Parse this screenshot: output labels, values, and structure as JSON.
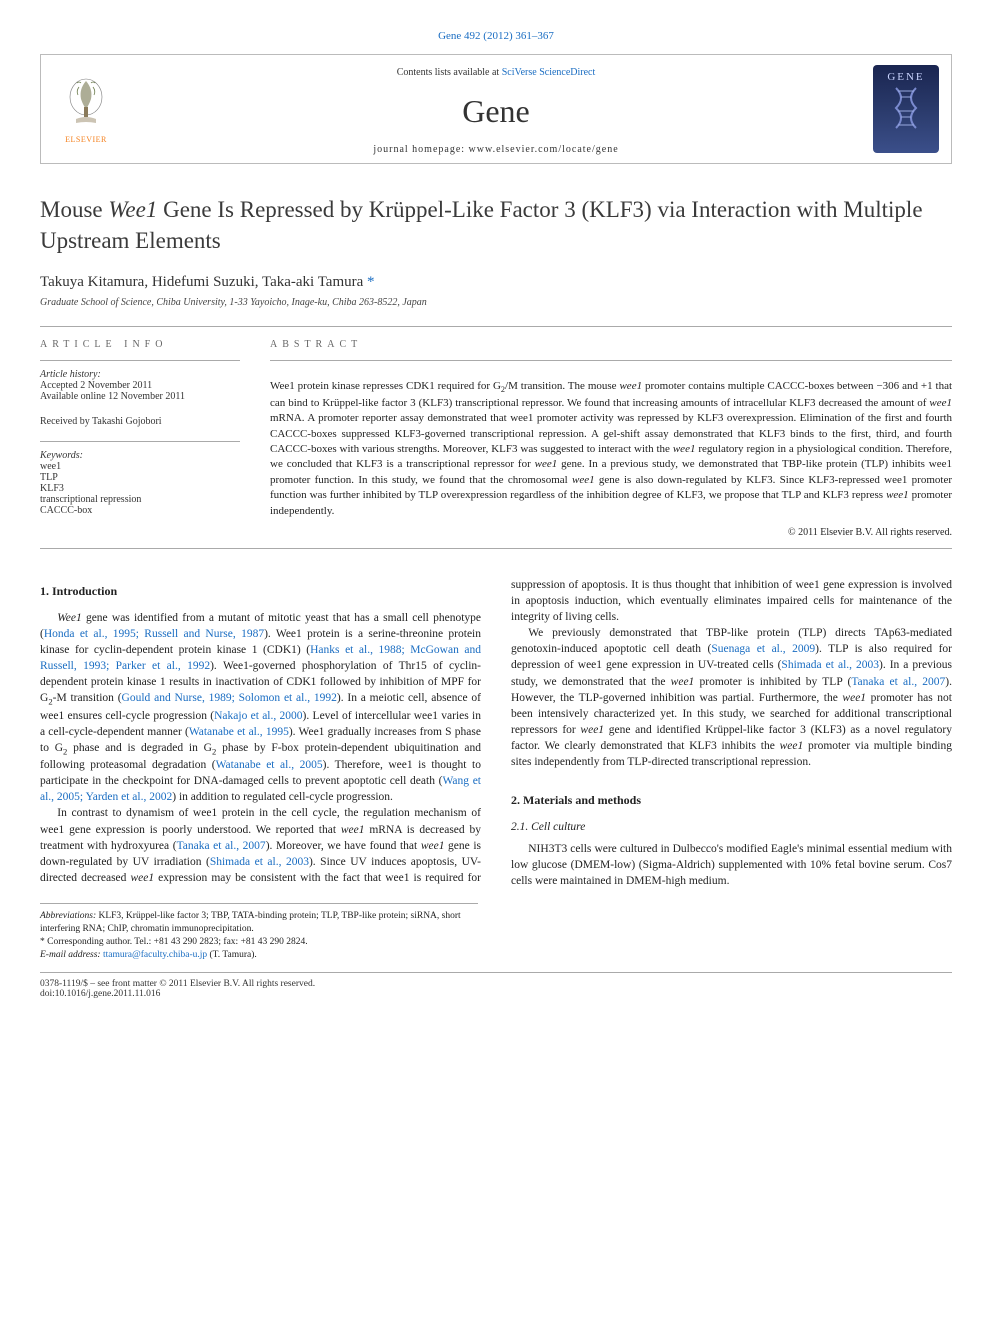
{
  "journal": {
    "topLinkText": "Gene 492 (2012) 361–367",
    "contentsListText": "Contents lists available at ",
    "contentsLinkText": "SciVerse ScienceDirect",
    "name": "Gene",
    "homepageText": "journal homepage: www.elsevier.com/locate/gene",
    "publisherLogoText": "ELSEVIER",
    "coverTitle": "GENE"
  },
  "article": {
    "titleHtml": "Mouse <i>Wee1</i> Gene Is Repressed by Krüppel-Like Factor 3 (KLF3) via Interaction with Multiple Upstream Elements",
    "authorsHtml": "Takuya Kitamura, Hidefumi Suzuki, Taka-aki Tamura <span class='corr-star'>*</span>",
    "affiliation": "Graduate School of Science, Chiba University, 1-33 Yayoicho, Inage-ku, Chiba 263-8522, Japan"
  },
  "meta": {
    "infoHeading": "article info",
    "abstractHeading": "abstract",
    "historyLabel": "Article history:",
    "acceptedText": "Accepted 2 November 2011",
    "availableText": "Available online 12 November 2011",
    "receivedByText": "Received by Takashi Gojobori",
    "keywordsLabel": "Keywords:",
    "keywords": [
      "wee1",
      "TLP",
      "KLF3",
      "transcriptional repression",
      "CACCC-box"
    ]
  },
  "abstract": {
    "textHtml": "Wee1 protein kinase represses CDK1 required for G<sub>2</sub>/M transition. The mouse <i>wee1</i> promoter contains multiple CACCC-boxes between −306 and +1 that can bind to Krüppel-like factor 3 (KLF3) transcriptional repressor. We found that increasing amounts of intracellular KLF3 decreased the amount of <i>wee1</i> mRNA. A promoter reporter assay demonstrated that wee1 promoter activity was repressed by KLF3 overexpression. Elimination of the first and fourth CACCC-boxes suppressed KLF3-governed transcriptional repression. A gel-shift assay demonstrated that KLF3 binds to the first, third, and fourth CACCC-boxes with various strengths. Moreover, KLF3 was suggested to interact with the <i>wee1</i> regulatory region in a physiological condition. Therefore, we concluded that KLF3 is a transcriptional repressor for <i>wee1</i> gene. In a previous study, we demonstrated that TBP-like protein (TLP) inhibits wee1 promoter function. In this study, we found that the chromosomal <i>wee1</i> gene is also down-regulated by KLF3. Since KLF3-repressed wee1 promoter function was further inhibited by TLP overexpression regardless of the inhibition degree of KLF3, we propose that TLP and KLF3 repress <i>wee1</i> promoter independently.",
    "copyright": "© 2011 Elsevier B.V. All rights reserved."
  },
  "sections": {
    "introHeading": "1. Introduction",
    "introP1Html": "<i>Wee1</i> gene was identified from a mutant of mitotic yeast that has a small cell phenotype (<a href='#'>Honda et al., 1995; Russell and Nurse, 1987</a>). Wee1 protein is a serine-threonine protein kinase for cyclin-dependent protein kinase 1 (CDK1) (<a href='#'>Hanks et al., 1988; McGowan and Russell, 1993; Parker et al., 1992</a>). Wee1-governed phosphorylation of Thr15 of cyclin-dependent protein kinase 1 results in inactivation of CDK1 followed by inhibition of MPF for G<sub>2</sub>-M transition (<a href='#'>Gould and Nurse, 1989; Solomon et al., 1992</a>). In a meiotic cell, absence of wee1 ensures cell-cycle progression (<a href='#'>Nakajo et al., 2000</a>). Level of intercellular wee1 varies in a cell-cycle-dependent manner (<a href='#'>Watanabe et al., 1995</a>). Wee1 gradually increases from S phase to G<sub>2</sub> phase and is degraded in G<sub>2</sub> phase by F-box protein-dependent ubiquitination and following proteasomal degradation (<a href='#'>Watanabe et al., 2005</a>). Therefore, wee1 is thought to participate in the checkpoint for DNA-damaged cells to prevent apoptotic cell death (<a href='#'>Wang et al., 2005; Yarden et al., 2002</a>) in addition to regulated cell-cycle progression.",
    "introP2Html": "In contrast to dynamism of wee1 protein in the cell cycle, the regulation mechanism of wee1 gene expression is poorly understood. We reported that <i>wee1</i> mRNA is decreased by treatment with hydroxyurea (<a href='#'>Tanaka et al., 2007</a>). Moreover, we have found that <i>wee1</i> gene is down-regulated by UV irradiation (<a href='#'>Shimada et al., 2003</a>). Since UV induces apoptosis, UV-directed decreased <i>wee1</i> expression may be consistent with the fact that wee1 is required for suppression of apoptosis. It is thus thought that inhibition of wee1 gene expression is involved in apoptosis induction, which eventually eliminates impaired cells for maintenance of the integrity of living cells.",
    "introP3Html": "We previously demonstrated that TBP-like protein (TLP) directs TAp63-mediated genotoxin-induced apoptotic cell death (<a href='#'>Suenaga et al., 2009</a>). TLP is also required for depression of wee1 gene expression in UV-treated cells (<a href='#'>Shimada et al., 2003</a>). In a previous study, we demonstrated that the <i>wee1</i> promoter is inhibited by TLP (<a href='#'>Tanaka et al., 2007</a>). However, the TLP-governed inhibition was partial. Furthermore, the <i>wee1</i> promoter has not been intensively characterized yet. In this study, we searched for additional transcriptional repressors for <i>wee1</i> gene and identified Krüppel-like factor 3 (KLF3) as a novel regulatory factor. We clearly demonstrated that KLF3 inhibits the <i>wee1</i> promoter via multiple binding sites independently from TLP-directed transcriptional repression.",
    "methodsHeading": "2. Materials and methods",
    "cellCultureHeading": "2.1. Cell culture",
    "cellCultureP1": "NIH3T3 cells were cultured in Dulbecco's modified Eagle's minimal essential medium with low glucose (DMEM-low) (Sigma-Aldrich) supplemented with 10% fetal bovine serum. Cos7 cells were maintained in DMEM-high medium."
  },
  "footnotes": {
    "abbrevLabel": "Abbreviations:",
    "abbrevText": " KLF3, Krüppel-like factor 3; TBP, TATA-binding protein; TLP, TBP-like protein; siRNA, short interfering RNA; ChIP, chromatin immunoprecipitation.",
    "corrLabel": "* Corresponding author. Tel.: +81 43 290 2823; fax: +81 43 290 2824.",
    "emailLabel": "E-mail address: ",
    "email": "ttamura@faculty.chiba-u.jp",
    "emailSuffix": " (T. Tamura)."
  },
  "bottomBar": {
    "line1": "0378-1119/$ – see front matter © 2011 Elsevier B.V. All rights reserved.",
    "line2": "doi:10.1016/j.gene.2011.11.016"
  },
  "styling": {
    "linkColor": "#1a6dc2",
    "textColor": "#222",
    "titleFontSize": 23,
    "authorFontSize": 15,
    "bodyFontSize": 11.5,
    "abstractFontSize": 11,
    "metaFontSize": 10,
    "footnoteFontSize": 9.5,
    "pageWidth": 992,
    "pageHeight": 1323,
    "columnGap": 30,
    "ruleColor": "#aaa",
    "elsevierOrange": "#f58220",
    "coverGradient": [
      "#1a2550",
      "#2a3a6b",
      "#3b4f8a"
    ]
  }
}
